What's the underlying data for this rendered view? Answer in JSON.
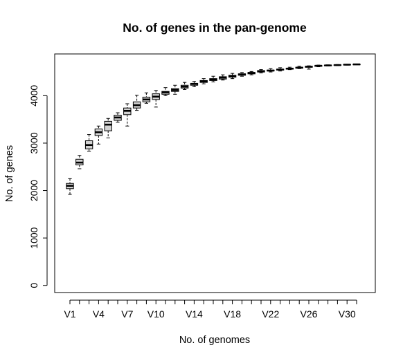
{
  "chart_data": {
    "type": "boxplot",
    "title": "No. of genes in the pan-genome",
    "xlabel": "No. of genomes",
    "ylabel": "No. of genes",
    "ylim": [
      -150,
      4880
    ],
    "y_ticks": [
      0,
      1000,
      2000,
      3000,
      4000
    ],
    "categories": [
      "V1",
      "V2",
      "V3",
      "V4",
      "V5",
      "V6",
      "V7",
      "V8",
      "V9",
      "V10",
      "V11",
      "V12",
      "V13",
      "V14",
      "V15",
      "V16",
      "V17",
      "V18",
      "V19",
      "V20",
      "V21",
      "V22",
      "V23",
      "V24",
      "V25",
      "V26",
      "V27",
      "V28",
      "V29",
      "V30",
      "V31"
    ],
    "x_tick_labels_shown": [
      "V1",
      "V4",
      "V7",
      "V10",
      "V14",
      "V18",
      "V22",
      "V26",
      "V30"
    ],
    "boxes": [
      {
        "min": 1920,
        "q1": 2040,
        "median": 2100,
        "q3": 2150,
        "max": 2250
      },
      {
        "min": 2460,
        "q1": 2540,
        "median": 2590,
        "q3": 2660,
        "max": 2740
      },
      {
        "min": 2830,
        "q1": 2880,
        "median": 2960,
        "q3": 3050,
        "max": 3180
      },
      {
        "min": 2980,
        "q1": 3160,
        "median": 3230,
        "q3": 3300,
        "max": 3360
      },
      {
        "min": 3110,
        "q1": 3260,
        "median": 3390,
        "q3": 3460,
        "max": 3520
      },
      {
        "min": 3440,
        "q1": 3480,
        "median": 3540,
        "q3": 3590,
        "max": 3640
      },
      {
        "min": 3360,
        "q1": 3600,
        "median": 3680,
        "q3": 3740,
        "max": 3830
      },
      {
        "min": 3690,
        "q1": 3740,
        "median": 3800,
        "q3": 3870,
        "max": 4010
      },
      {
        "min": 3840,
        "q1": 3870,
        "median": 3920,
        "q3": 3970,
        "max": 4060
      },
      {
        "min": 3760,
        "q1": 3920,
        "median": 3980,
        "q3": 4040,
        "max": 4110
      },
      {
        "min": 4000,
        "q1": 4030,
        "median": 4070,
        "q3": 4090,
        "max": 4170
      },
      {
        "min": 4030,
        "q1": 4090,
        "median": 4120,
        "q3": 4150,
        "max": 4220
      },
      {
        "min": 4130,
        "q1": 4160,
        "median": 4190,
        "q3": 4220,
        "max": 4280
      },
      {
        "min": 4190,
        "q1": 4220,
        "median": 4250,
        "q3": 4260,
        "max": 4300
      },
      {
        "min": 4250,
        "q1": 4280,
        "median": 4300,
        "q3": 4320,
        "max": 4360
      },
      {
        "min": 4290,
        "q1": 4320,
        "median": 4340,
        "q3": 4360,
        "max": 4410
      },
      {
        "min": 4330,
        "q1": 4350,
        "median": 4380,
        "q3": 4400,
        "max": 4440
      },
      {
        "min": 4360,
        "q1": 4390,
        "median": 4410,
        "q3": 4430,
        "max": 4470
      },
      {
        "min": 4410,
        "q1": 4430,
        "median": 4450,
        "q3": 4460,
        "max": 4490
      },
      {
        "min": 4440,
        "q1": 4460,
        "median": 4480,
        "q3": 4490,
        "max": 4510
      },
      {
        "min": 4480,
        "q1": 4500,
        "median": 4510,
        "q3": 4530,
        "max": 4550
      },
      {
        "min": 4500,
        "q1": 4520,
        "median": 4530,
        "q3": 4540,
        "max": 4570
      },
      {
        "min": 4520,
        "q1": 4540,
        "median": 4550,
        "q3": 4560,
        "max": 4590
      },
      {
        "min": 4550,
        "q1": 4560,
        "median": 4570,
        "q3": 4580,
        "max": 4600
      },
      {
        "min": 4570,
        "q1": 4580,
        "median": 4590,
        "q3": 4600,
        "max": 4620
      },
      {
        "min": 4560,
        "q1": 4600,
        "median": 4610,
        "q3": 4620,
        "max": 4630
      },
      {
        "min": 4610,
        "q1": 4620,
        "median": 4630,
        "q3": 4635,
        "max": 4645
      },
      {
        "min": 4625,
        "q1": 4632,
        "median": 4638,
        "q3": 4643,
        "max": 4650
      },
      {
        "min": 4635,
        "q1": 4640,
        "median": 4645,
        "q3": 4650,
        "max": 4656
      },
      {
        "min": 4645,
        "q1": 4650,
        "median": 4654,
        "q3": 4657,
        "max": 4662
      },
      {
        "min": 4660,
        "q1": 4660,
        "median": 4660,
        "q3": 4660,
        "max": 4660
      }
    ],
    "colors": {
      "box_fill": "#d3d3d3",
      "stroke": "#000000",
      "background": "#ffffff"
    }
  }
}
